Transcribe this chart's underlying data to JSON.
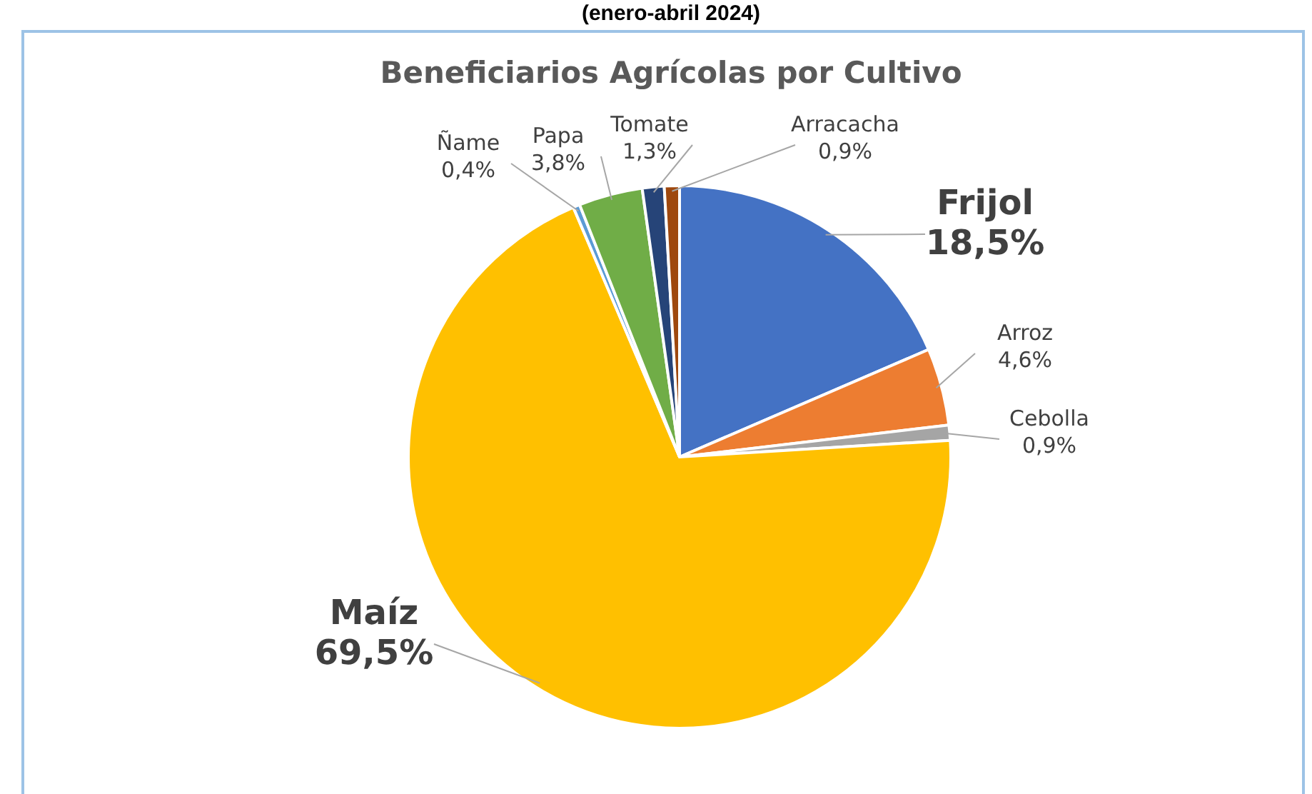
{
  "chart_data": {
    "type": "pie",
    "title": "Beneficiarios Agrícolas por Cultivo",
    "subtitle": "(enero-abril 2024)",
    "categories": [
      "Frijol",
      "Arroz",
      "Cebolla",
      "Maíz",
      "Ñame",
      "Papa",
      "Tomate",
      "Arracacha"
    ],
    "values": [
      18.5,
      4.6,
      0.9,
      69.5,
      0.4,
      3.8,
      1.3,
      0.9
    ],
    "colors": [
      "#4472c4",
      "#ed7d31",
      "#a5a5a5",
      "#ffc000",
      "#5b9bd5",
      "#70ad47",
      "#264478",
      "#9e480e"
    ],
    "value_labels": [
      "18,5%",
      "4,6%",
      "0,9%",
      "69,5%",
      "0,4%",
      "3,8%",
      "1,3%",
      "0,9%"
    ]
  }
}
